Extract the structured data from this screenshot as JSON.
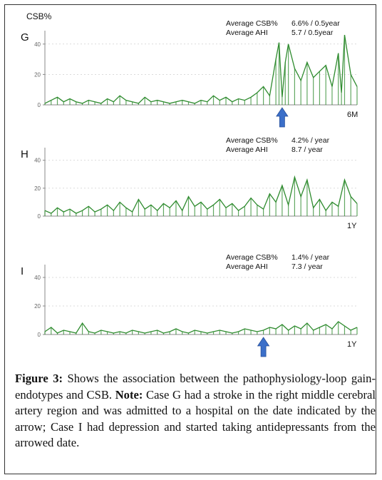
{
  "chart_data": [
    {
      "type": "line",
      "panel_label": "G",
      "ylabel": "CSB%",
      "yticks": [
        0,
        20,
        40
      ],
      "ylim": [
        0,
        46
      ],
      "x_end_label": "6M",
      "stats": [
        {
          "label": "Average CSB%",
          "value": "6.6% / 0.5year"
        },
        {
          "label": "Average AHI",
          "value": "5.7 / 0.5year"
        }
      ],
      "arrow_at_fraction": 0.76,
      "color": "#2e8b2e",
      "series": [
        {
          "x": [
            0,
            0.02,
            0.04,
            0.06,
            0.08,
            0.1,
            0.12,
            0.14,
            0.16,
            0.18,
            0.2,
            0.22,
            0.24,
            0.26,
            0.28,
            0.3,
            0.32,
            0.34,
            0.36,
            0.38,
            0.4,
            0.42,
            0.44,
            0.46,
            0.48,
            0.5,
            0.52,
            0.54,
            0.56,
            0.58,
            0.6,
            0.62,
            0.64,
            0.66,
            0.68,
            0.7,
            0.72,
            0.74,
            0.75,
            0.76,
            0.77,
            0.78,
            0.8,
            0.82,
            0.84,
            0.86,
            0.88,
            0.9,
            0.92,
            0.94,
            0.95,
            0.96,
            0.98,
            1.0
          ],
          "values": [
            1,
            3,
            5,
            2,
            4,
            2,
            1,
            3,
            2,
            1,
            4,
            2,
            6,
            3,
            2,
            1,
            5,
            2,
            3,
            2,
            1,
            2,
            3,
            2,
            1,
            3,
            2,
            6,
            3,
            5,
            2,
            4,
            3,
            5,
            8,
            12,
            6,
            30,
            41,
            5,
            28,
            40,
            24,
            16,
            28,
            18,
            22,
            26,
            12,
            34,
            8,
            46,
            20,
            12
          ]
        }
      ]
    },
    {
      "type": "line",
      "panel_label": "H",
      "ylabel": "",
      "yticks": [
        0,
        20,
        40
      ],
      "ylim": [
        0,
        46
      ],
      "x_end_label": "1Y",
      "stats": [
        {
          "label": "Average CSB%",
          "value": "4.2% / year"
        },
        {
          "label": "Average AHI",
          "value": "8.7 / year"
        }
      ],
      "color": "#2e8b2e",
      "series": [
        {
          "x": [
            0,
            0.02,
            0.04,
            0.06,
            0.08,
            0.1,
            0.12,
            0.14,
            0.16,
            0.18,
            0.2,
            0.22,
            0.24,
            0.26,
            0.28,
            0.3,
            0.32,
            0.34,
            0.36,
            0.38,
            0.4,
            0.42,
            0.44,
            0.46,
            0.48,
            0.5,
            0.52,
            0.54,
            0.56,
            0.58,
            0.6,
            0.62,
            0.64,
            0.66,
            0.68,
            0.7,
            0.72,
            0.74,
            0.76,
            0.78,
            0.8,
            0.82,
            0.84,
            0.86,
            0.88,
            0.9,
            0.92,
            0.94,
            0.96,
            0.98,
            1.0
          ],
          "values": [
            4,
            2,
            6,
            3,
            5,
            2,
            4,
            7,
            3,
            5,
            8,
            4,
            10,
            6,
            3,
            12,
            5,
            8,
            4,
            9,
            6,
            11,
            4,
            14,
            7,
            10,
            5,
            8,
            12,
            6,
            9,
            4,
            7,
            13,
            8,
            5,
            16,
            10,
            22,
            8,
            28,
            14,
            26,
            6,
            12,
            4,
            10,
            7,
            26,
            14,
            9
          ]
        }
      ]
    },
    {
      "type": "line",
      "panel_label": "I",
      "ylabel": "",
      "yticks": [
        0,
        20,
        40
      ],
      "ylim": [
        0,
        46
      ],
      "x_end_label": "1Y",
      "stats": [
        {
          "label": "Average CSB%",
          "value": "1.4% / year"
        },
        {
          "label": "Average AHI",
          "value": "7.3 / year"
        }
      ],
      "arrow_at_fraction": 0.7,
      "color": "#2e8b2e",
      "series": [
        {
          "x": [
            0,
            0.02,
            0.04,
            0.06,
            0.08,
            0.1,
            0.12,
            0.14,
            0.16,
            0.18,
            0.2,
            0.22,
            0.24,
            0.26,
            0.28,
            0.3,
            0.32,
            0.34,
            0.36,
            0.38,
            0.4,
            0.42,
            0.44,
            0.46,
            0.48,
            0.5,
            0.52,
            0.54,
            0.56,
            0.58,
            0.6,
            0.62,
            0.64,
            0.66,
            0.68,
            0.7,
            0.72,
            0.74,
            0.76,
            0.78,
            0.8,
            0.82,
            0.84,
            0.86,
            0.88,
            0.9,
            0.92,
            0.94,
            0.96,
            0.98,
            1.0
          ],
          "values": [
            2,
            5,
            1,
            3,
            2,
            1,
            8,
            2,
            1,
            3,
            2,
            1,
            2,
            1,
            3,
            2,
            1,
            2,
            3,
            1,
            2,
            4,
            2,
            1,
            3,
            2,
            1,
            2,
            3,
            2,
            1,
            2,
            4,
            3,
            2,
            3,
            5,
            4,
            7,
            3,
            6,
            4,
            8,
            3,
            5,
            7,
            4,
            9,
            6,
            3,
            5
          ]
        }
      ]
    }
  ],
  "caption": {
    "figure_label": "Figure 3:",
    "text1": " Shows the association between the pathophysiology-loop gain-endotypes and CSB. ",
    "note_label": "Note:",
    "text2": " Case G had a stroke in the right middle cerebral artery region and was admitted to a hospital on the date indicated by the arrow; Case I had depression and started taking antidepressants from the arrowed date."
  }
}
